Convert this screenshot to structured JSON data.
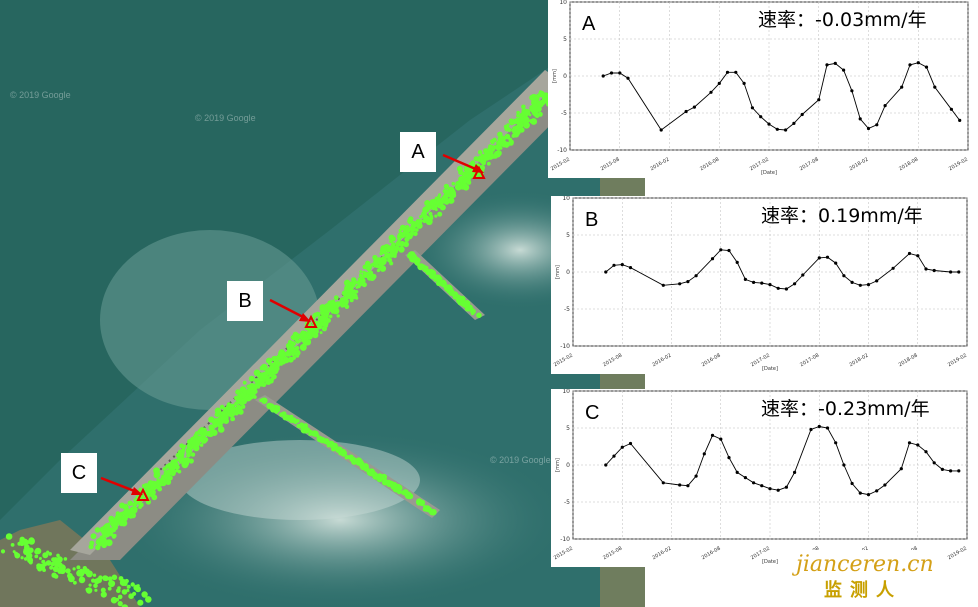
{
  "map": {
    "watermarks": [
      "© 2019 Google",
      "© 2019 Google",
      "© 2019 Google"
    ],
    "callouts": [
      {
        "label": "A"
      },
      {
        "label": "B"
      },
      {
        "label": "C"
      }
    ],
    "colors": {
      "water": "#2d6f6b",
      "river_light": "#8fb8b0",
      "dam": "#8a8a80",
      "points": "#66ff33",
      "marker": "#e00000",
      "arrow": "#e00000"
    }
  },
  "chart_data": [
    {
      "type": "line",
      "panel": "A",
      "annotation": "速率：-0.03mm/年",
      "xlabel": "[Date]",
      "ylabel": "[mm]",
      "ylim": [
        -10,
        10
      ],
      "yticks": [
        -10,
        -5,
        0,
        5,
        10
      ],
      "xticks": [
        "2015-02",
        "2015-08",
        "2016-02",
        "2016-08",
        "2017-02",
        "2017-08",
        "2018-02",
        "2018-08",
        "2019-02"
      ],
      "grid": true,
      "x": [
        "2015-06",
        "2015-07",
        "2015-08",
        "2015-09",
        "2016-01",
        "2016-04",
        "2016-05",
        "2016-07",
        "2016-08",
        "2016-09",
        "2016-10",
        "2016-11",
        "2016-12",
        "2017-01",
        "2017-02",
        "2017-03",
        "2017-04",
        "2017-05",
        "2017-06",
        "2017-08",
        "2017-09",
        "2017-10",
        "2017-11",
        "2017-12",
        "2018-01",
        "2018-02",
        "2018-03",
        "2018-04",
        "2018-06",
        "2018-07",
        "2018-08",
        "2018-09",
        "2018-10",
        "2018-12",
        "2019-01"
      ],
      "y": [
        0.0,
        0.4,
        0.4,
        -0.3,
        -7.3,
        -4.8,
        -4.2,
        -2.2,
        -1.0,
        0.5,
        0.5,
        -1.0,
        -4.3,
        -5.5,
        -6.5,
        -7.2,
        -7.3,
        -6.4,
        -5.2,
        -3.2,
        1.5,
        1.7,
        0.8,
        -2.0,
        -5.8,
        -7.1,
        -6.6,
        -4.0,
        -1.5,
        1.5,
        1.8,
        1.2,
        -1.5,
        -4.5,
        -6.0
      ]
    },
    {
      "type": "line",
      "panel": "B",
      "annotation": "速率：0.19mm/年",
      "xlabel": "[Date]",
      "ylabel": "[mm]",
      "ylim": [
        -10,
        10
      ],
      "yticks": [
        -10,
        -5,
        0,
        5,
        10
      ],
      "xticks": [
        "2015-02",
        "2015-08",
        "2016-02",
        "2016-08",
        "2017-02",
        "2017-08",
        "2018-02",
        "2018-08",
        "2019-02"
      ],
      "grid": true,
      "x": [
        "2015-06",
        "2015-07",
        "2015-08",
        "2015-09",
        "2016-01",
        "2016-03",
        "2016-04",
        "2016-05",
        "2016-07",
        "2016-08",
        "2016-09",
        "2016-10",
        "2016-11",
        "2016-12",
        "2017-01",
        "2017-02",
        "2017-03",
        "2017-04",
        "2017-05",
        "2017-06",
        "2017-08",
        "2017-09",
        "2017-10",
        "2017-11",
        "2017-12",
        "2018-01",
        "2018-02",
        "2018-03",
        "2018-05",
        "2018-07",
        "2018-08",
        "2018-09",
        "2018-10",
        "2018-12",
        "2019-01"
      ],
      "y": [
        0.0,
        0.9,
        1.0,
        0.6,
        -1.8,
        -1.6,
        -1.3,
        -0.5,
        1.8,
        3.0,
        2.9,
        1.3,
        -1.0,
        -1.4,
        -1.5,
        -1.7,
        -2.2,
        -2.3,
        -1.6,
        -0.4,
        1.9,
        2.0,
        1.2,
        -0.5,
        -1.4,
        -1.8,
        -1.7,
        -1.2,
        0.5,
        2.5,
        2.2,
        0.4,
        0.2,
        0.0,
        0.0
      ]
    },
    {
      "type": "line",
      "panel": "C",
      "annotation": "速率：-0.23mm/年",
      "xlabel": "[Date]",
      "ylabel": "[mm]",
      "ylim": [
        -10,
        10
      ],
      "yticks": [
        -10,
        -5,
        0,
        5,
        10
      ],
      "xticks": [
        "2015-02",
        "2015-08",
        "2016-02",
        "2016-08",
        "2017-02",
        "2017-08",
        "2018-02",
        "2018-08",
        "2019-02"
      ],
      "grid": true,
      "x": [
        "2015-06",
        "2015-07",
        "2015-08",
        "2015-09",
        "2016-01",
        "2016-03",
        "2016-04",
        "2016-05",
        "2016-06",
        "2016-07",
        "2016-08",
        "2016-09",
        "2016-10",
        "2016-11",
        "2016-12",
        "2017-01",
        "2017-02",
        "2017-03",
        "2017-04",
        "2017-05",
        "2017-07",
        "2017-08",
        "2017-09",
        "2017-10",
        "2017-11",
        "2017-12",
        "2018-01",
        "2018-02",
        "2018-03",
        "2018-04",
        "2018-06",
        "2018-07",
        "2018-08",
        "2018-09",
        "2018-10",
        "2018-11",
        "2018-12",
        "2019-01"
      ],
      "y": [
        0.0,
        1.2,
        2.4,
        2.9,
        -2.4,
        -2.7,
        -2.8,
        -1.5,
        1.5,
        4.0,
        3.5,
        1.0,
        -1.0,
        -1.7,
        -2.4,
        -2.8,
        -3.2,
        -3.4,
        -3.0,
        -1.0,
        4.8,
        5.2,
        5.0,
        3.0,
        0.0,
        -2.5,
        -3.8,
        -4.0,
        -3.5,
        -2.7,
        -0.5,
        3.0,
        2.7,
        1.8,
        0.3,
        -0.6,
        -0.8,
        -0.8
      ]
    }
  ],
  "logo": {
    "top": "jianceren.cn",
    "bottom": "监测人"
  }
}
